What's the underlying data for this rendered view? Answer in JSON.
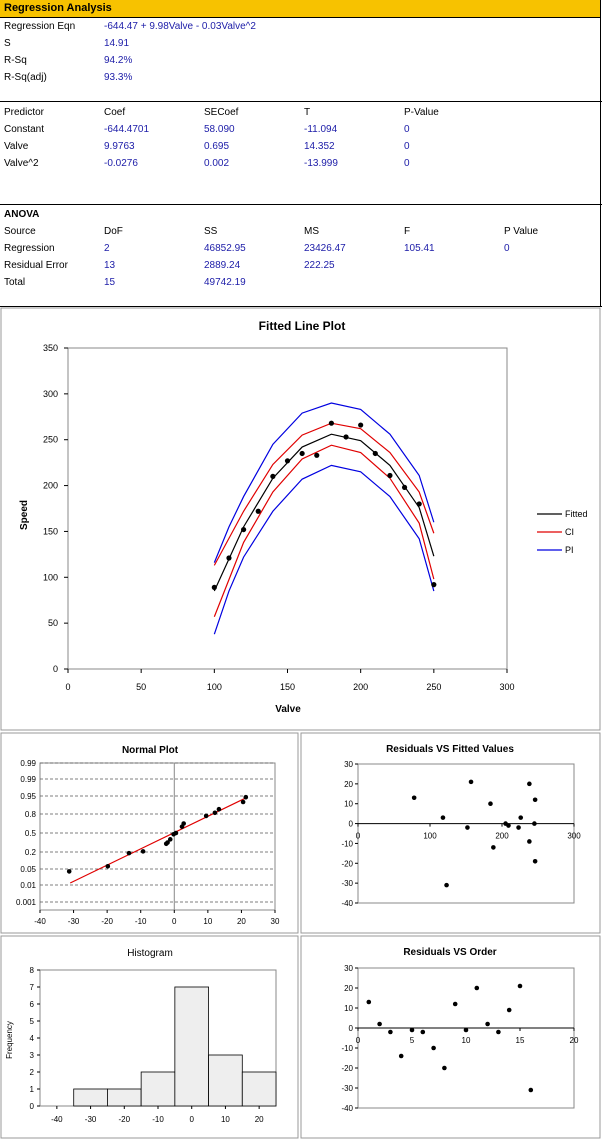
{
  "header": {
    "title": "Regression Analysis"
  },
  "summary": [
    {
      "label": "Regression Eqn",
      "value": "-644.47 + 9.98Valve - 0.03Valve^2"
    },
    {
      "label": "S",
      "value": "14.91"
    },
    {
      "label": "R-Sq",
      "value": "94.2%"
    },
    {
      "label": "R-Sq(adj)",
      "value": "93.3%"
    }
  ],
  "coef_table": {
    "headers": [
      "Predictor",
      "Coef",
      "SECoef",
      "T",
      "P-Value"
    ],
    "rows": [
      [
        "Constant",
        "-644.4701",
        "58.090",
        "-11.094",
        "0"
      ],
      [
        "Valve",
        "9.9763",
        "0.695",
        "14.352",
        "0"
      ],
      [
        "Valve^2",
        "-0.0276",
        "0.002",
        "-13.999",
        "0"
      ]
    ]
  },
  "anova": {
    "title": "ANOVA",
    "headers": [
      "Source",
      "DoF",
      "SS",
      "MS",
      "F",
      "P Value"
    ],
    "rows": [
      [
        "Regression",
        "2",
        "46852.95",
        "23426.47",
        "105.41",
        "0"
      ],
      [
        "Residual Error",
        "13",
        "2889.24",
        "222.25",
        "",
        ""
      ],
      [
        "Total",
        "15",
        "49742.19",
        "",
        "",
        ""
      ]
    ]
  },
  "colors": {
    "header_bg": "#f7c200",
    "value_text": "#1c1ca8",
    "fitted": "#000000",
    "ci": "#e00000",
    "pi": "#0000e0",
    "hist_bar": "#eeeeee"
  },
  "chart_data": [
    {
      "type": "scatter",
      "title": "Fitted Line Plot",
      "xlabel": "Valve",
      "ylabel": "Speed",
      "xlim": [
        0,
        300
      ],
      "ylim": [
        0,
        350
      ],
      "xticks": [
        "0",
        "50",
        "100",
        "150",
        "200",
        "250",
        "300"
      ],
      "yticks": [
        "0",
        "50",
        "100",
        "150",
        "200",
        "250",
        "300",
        "350"
      ],
      "points": [
        [
          100,
          89
        ],
        [
          110,
          121
        ],
        [
          120,
          152
        ],
        [
          130,
          172
        ],
        [
          140,
          210
        ],
        [
          150,
          227
        ],
        [
          160,
          235
        ],
        [
          170,
          233
        ],
        [
          180,
          268
        ],
        [
          190,
          253
        ],
        [
          200,
          266
        ],
        [
          210,
          235
        ],
        [
          220,
          211
        ],
        [
          230,
          198
        ],
        [
          240,
          180
        ],
        [
          250,
          92
        ]
      ],
      "series": [
        {
          "name": "Fitted",
          "x": [
            100,
            120,
            140,
            160,
            180,
            200,
            220,
            240,
            250
          ],
          "y": [
            85,
            155,
            208,
            242,
            256,
            249,
            222,
            176,
            123
          ]
        },
        {
          "name": "CI",
          "x": [
            100,
            120,
            140,
            160,
            180,
            200,
            220,
            240,
            250
          ],
          "y": [
            113,
            172,
            223,
            255,
            268,
            262,
            236,
            193,
            148
          ]
        },
        {
          "name": "CI",
          "x": [
            100,
            120,
            140,
            160,
            180,
            200,
            220,
            240,
            250
          ],
          "y": [
            57,
            138,
            193,
            229,
            244,
            236,
            208,
            159,
            98
          ]
        },
        {
          "name": "PI",
          "x": [
            100,
            110,
            120,
            140,
            160,
            180,
            200,
            220,
            240,
            250
          ],
          "y": [
            116,
            155,
            188,
            245,
            279,
            290,
            283,
            256,
            211,
            160
          ]
        },
        {
          "name": "PI",
          "x": [
            100,
            110,
            120,
            140,
            160,
            180,
            200,
            220,
            240,
            250
          ],
          "y": [
            38,
            85,
            122,
            172,
            207,
            222,
            215,
            188,
            142,
            85
          ]
        }
      ],
      "legend": [
        "Fitted",
        "CI",
        "PI"
      ],
      "legend_position": "right",
      "grid": false
    },
    {
      "type": "scatter",
      "title": "Normal Plot",
      "xlim": [
        -40,
        30
      ],
      "xticks": [
        "-40",
        "-30",
        "-20",
        "-10",
        "0",
        "10",
        "20",
        "30"
      ],
      "yticks": [
        "0.001",
        "0.01",
        "0.05",
        "0.2",
        "0.5",
        "0.8",
        "0.95",
        "0.99",
        "0.99"
      ],
      "points": [
        [
          -31.3,
          0.044
        ],
        [
          -19.8,
          0.074
        ],
        [
          -13.5,
          0.19
        ],
        [
          -9.3,
          0.21
        ],
        [
          -2.4,
          0.33
        ],
        [
          -2.0,
          0.35
        ],
        [
          -1.2,
          0.4
        ],
        [
          -0.2,
          0.48
        ],
        [
          0.5,
          0.5
        ],
        [
          2.3,
          0.6
        ],
        [
          2.8,
          0.65
        ],
        [
          9.5,
          0.77
        ],
        [
          12.1,
          0.81
        ],
        [
          13.3,
          0.84
        ],
        [
          20.5,
          0.9
        ],
        [
          21.3,
          0.94
        ]
      ],
      "fit_line": [
        [
          -31,
          0.015
        ],
        [
          21,
          0.93
        ]
      ],
      "grid": true
    },
    {
      "type": "scatter",
      "title": "Residuals VS Fitted Values",
      "xlim": [
        0,
        300
      ],
      "ylim": [
        -40,
        30
      ],
      "xticks": [
        "0",
        "100",
        "200",
        "300"
      ],
      "yticks": [
        "-40",
        "-30",
        "-20",
        "-10",
        "0",
        "10",
        "20",
        "30"
      ],
      "points": [
        [
          78,
          13
        ],
        [
          118,
          3
        ],
        [
          123,
          -31
        ],
        [
          152,
          -2
        ],
        [
          157,
          21
        ],
        [
          184,
          10
        ],
        [
          188,
          -12
        ],
        [
          205,
          0
        ],
        [
          209,
          -1
        ],
        [
          223,
          -2
        ],
        [
          226,
          3
        ],
        [
          238,
          20
        ],
        [
          238,
          -9
        ],
        [
          245,
          0
        ],
        [
          246,
          12
        ],
        [
          246,
          -19
        ]
      ]
    },
    {
      "type": "bar",
      "title": "Histogram",
      "ylabel": "Frequency",
      "xlim": [
        -45,
        25
      ],
      "ylim": [
        0,
        8
      ],
      "xticks": [
        "-40",
        "-30",
        "-20",
        "-10",
        "0",
        "10",
        "20"
      ],
      "yticks": [
        "0",
        "1",
        "2",
        "3",
        "4",
        "5",
        "6",
        "7",
        "8"
      ],
      "bins": [
        [
          -35,
          -25
        ],
        [
          -25,
          -15
        ],
        [
          -15,
          -5
        ],
        [
          -5,
          5
        ],
        [
          5,
          15
        ],
        [
          15,
          25
        ]
      ],
      "values": [
        1,
        1,
        2,
        7,
        3,
        2
      ]
    },
    {
      "type": "scatter",
      "title": "Residuals VS Order",
      "xlim": [
        0,
        20
      ],
      "ylim": [
        -40,
        30
      ],
      "xticks": [
        "0",
        "5",
        "10",
        "15",
        "20"
      ],
      "yticks": [
        "-40",
        "-30",
        "-20",
        "-10",
        "0",
        "10",
        "20",
        "30"
      ],
      "points": [
        [
          1,
          13
        ],
        [
          2,
          2
        ],
        [
          3,
          -2
        ],
        [
          4,
          -14
        ],
        [
          5,
          -1
        ],
        [
          6,
          -2
        ],
        [
          7,
          -10
        ],
        [
          8,
          -20
        ],
        [
          9,
          12
        ],
        [
          10,
          -1
        ],
        [
          11,
          20
        ],
        [
          12,
          2
        ],
        [
          13,
          -2
        ],
        [
          14,
          9
        ],
        [
          15,
          21
        ],
        [
          16,
          -31
        ]
      ]
    }
  ]
}
